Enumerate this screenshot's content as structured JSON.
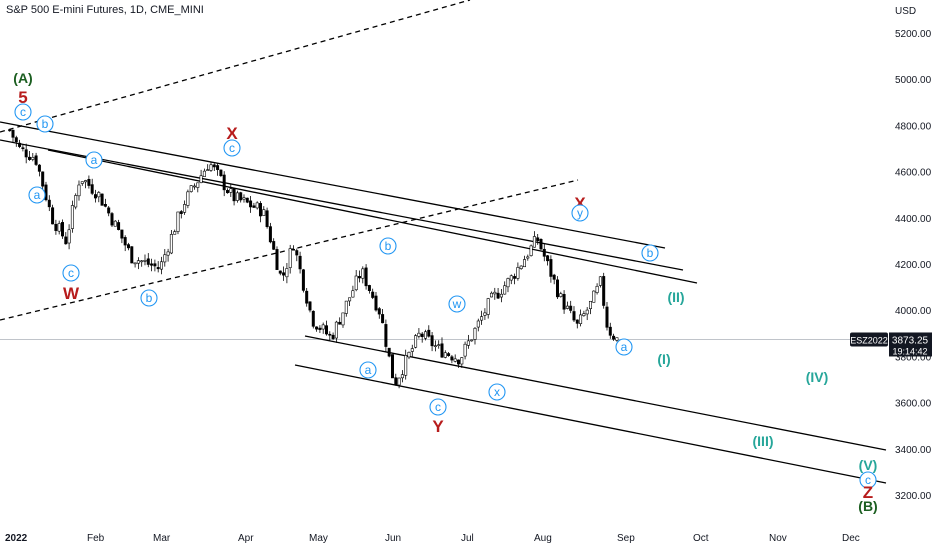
{
  "header": {
    "title": "S&P 500 E-mini Futures, 1D, CME_MINI"
  },
  "price_axis": {
    "currency": "USD",
    "ticks": [
      "5200.00",
      "5000.00",
      "4800.00",
      "4600.00",
      "4400.00",
      "4200.00",
      "4000.00",
      "3800.00",
      "3600.00",
      "3400.00",
      "3200.00"
    ]
  },
  "time_axis": {
    "labels": [
      "2022",
      "Feb",
      "Mar",
      "Apr",
      "May",
      "Jun",
      "Jul",
      "Aug",
      "Sep",
      "Oct",
      "Nov",
      "Dec"
    ]
  },
  "price_badge": {
    "symbol": "ESZ2022",
    "price": "3873.25",
    "countdown": "19:14:42"
  },
  "colors": {
    "up": "#ffffff",
    "down": "#000000",
    "outline": "#000000",
    "blue_label": "#2196f3",
    "teal_label": "#26a69a",
    "red_label": "#b71c1c",
    "green_label": "#1b5e20"
  },
  "chart_data": {
    "type": "candlestick",
    "symbol": "ESZ2022",
    "timeframe": "1D",
    "last_price": 3873.25,
    "y_range": [
      3130,
      5290
    ],
    "x_labels": [
      "2022",
      "Feb",
      "Mar",
      "Apr",
      "May",
      "Jun",
      "Jul",
      "Aug",
      "Sep",
      "Oct",
      "Nov",
      "Dec"
    ],
    "close_path": [
      [
        "2022-01-03",
        4780
      ],
      [
        "2022-01-07",
        4700
      ],
      [
        "2022-01-14",
        4660
      ],
      [
        "2022-01-21",
        4400
      ],
      [
        "2022-01-27",
        4300
      ],
      [
        "2022-02-02",
        4580
      ],
      [
        "2022-02-10",
        4500
      ],
      [
        "2022-02-18",
        4350
      ],
      [
        "2022-02-24",
        4230
      ],
      [
        "2022-03-08",
        4180
      ],
      [
        "2022-03-18",
        4460
      ],
      [
        "2022-03-29",
        4640
      ],
      [
        "2022-04-08",
        4490
      ],
      [
        "2022-04-21",
        4430
      ],
      [
        "2022-04-29",
        4130
      ],
      [
        "2022-05-04",
        4290
      ],
      [
        "2022-05-12",
        3960
      ],
      [
        "2022-05-20",
        3880
      ],
      [
        "2022-06-02",
        4170
      ],
      [
        "2022-06-10",
        3990
      ],
      [
        "2022-06-16",
        3680
      ],
      [
        "2022-06-27",
        3900
      ],
      [
        "2022-07-05",
        3830
      ],
      [
        "2022-07-14",
        3790
      ],
      [
        "2022-07-27",
        4040
      ],
      [
        "2022-08-05",
        4140
      ],
      [
        "2022-08-16",
        4310
      ],
      [
        "2022-08-26",
        4050
      ],
      [
        "2022-09-02",
        3930
      ],
      [
        "2022-09-08",
        4030
      ],
      [
        "2022-09-12",
        4120
      ],
      [
        "2022-09-15",
        3920
      ],
      [
        "2022-09-19",
        3873
      ]
    ],
    "wave_labels": [
      {
        "text": "(A)",
        "color": "green",
        "circled": false
      },
      {
        "text": "5",
        "color": "red",
        "circled": false
      },
      {
        "text": "c",
        "color": "blue",
        "circled": true
      },
      {
        "text": "b",
        "color": "blue",
        "circled": true
      },
      {
        "text": "a",
        "color": "blue",
        "circled": true
      },
      {
        "text": "a",
        "color": "blue",
        "circled": true
      },
      {
        "text": "c",
        "color": "blue",
        "circled": true
      },
      {
        "text": "W",
        "color": "red",
        "circled": false
      },
      {
        "text": "b",
        "color": "blue",
        "circled": true
      },
      {
        "text": "X",
        "color": "red",
        "circled": false
      },
      {
        "text": "c",
        "color": "blue",
        "circled": true
      },
      {
        "text": "b",
        "color": "blue",
        "circled": true
      },
      {
        "text": "a",
        "color": "blue",
        "circled": true
      },
      {
        "text": "c",
        "color": "blue",
        "circled": true
      },
      {
        "text": "Y",
        "color": "red",
        "circled": false
      },
      {
        "text": "w",
        "color": "blue",
        "circled": true
      },
      {
        "text": "x",
        "color": "blue",
        "circled": true
      },
      {
        "text": "X",
        "color": "red",
        "circled": false
      },
      {
        "text": "y",
        "color": "blue",
        "circled": true
      },
      {
        "text": "b",
        "color": "blue",
        "circled": true
      },
      {
        "text": "a",
        "color": "blue",
        "circled": true
      },
      {
        "text": "(II)",
        "color": "teal",
        "circled": false
      },
      {
        "text": "(I)",
        "color": "teal",
        "circled": false
      },
      {
        "text": "(IV)",
        "color": "teal",
        "circled": false
      },
      {
        "text": "(III)",
        "color": "teal",
        "circled": false
      },
      {
        "text": "(V)",
        "color": "teal",
        "circled": false
      },
      {
        "text": "c",
        "color": "blue",
        "circled": true
      },
      {
        "text": "Z",
        "color": "red",
        "circled": false
      },
      {
        "text": "(B)",
        "color": "green",
        "circled": false
      }
    ]
  }
}
